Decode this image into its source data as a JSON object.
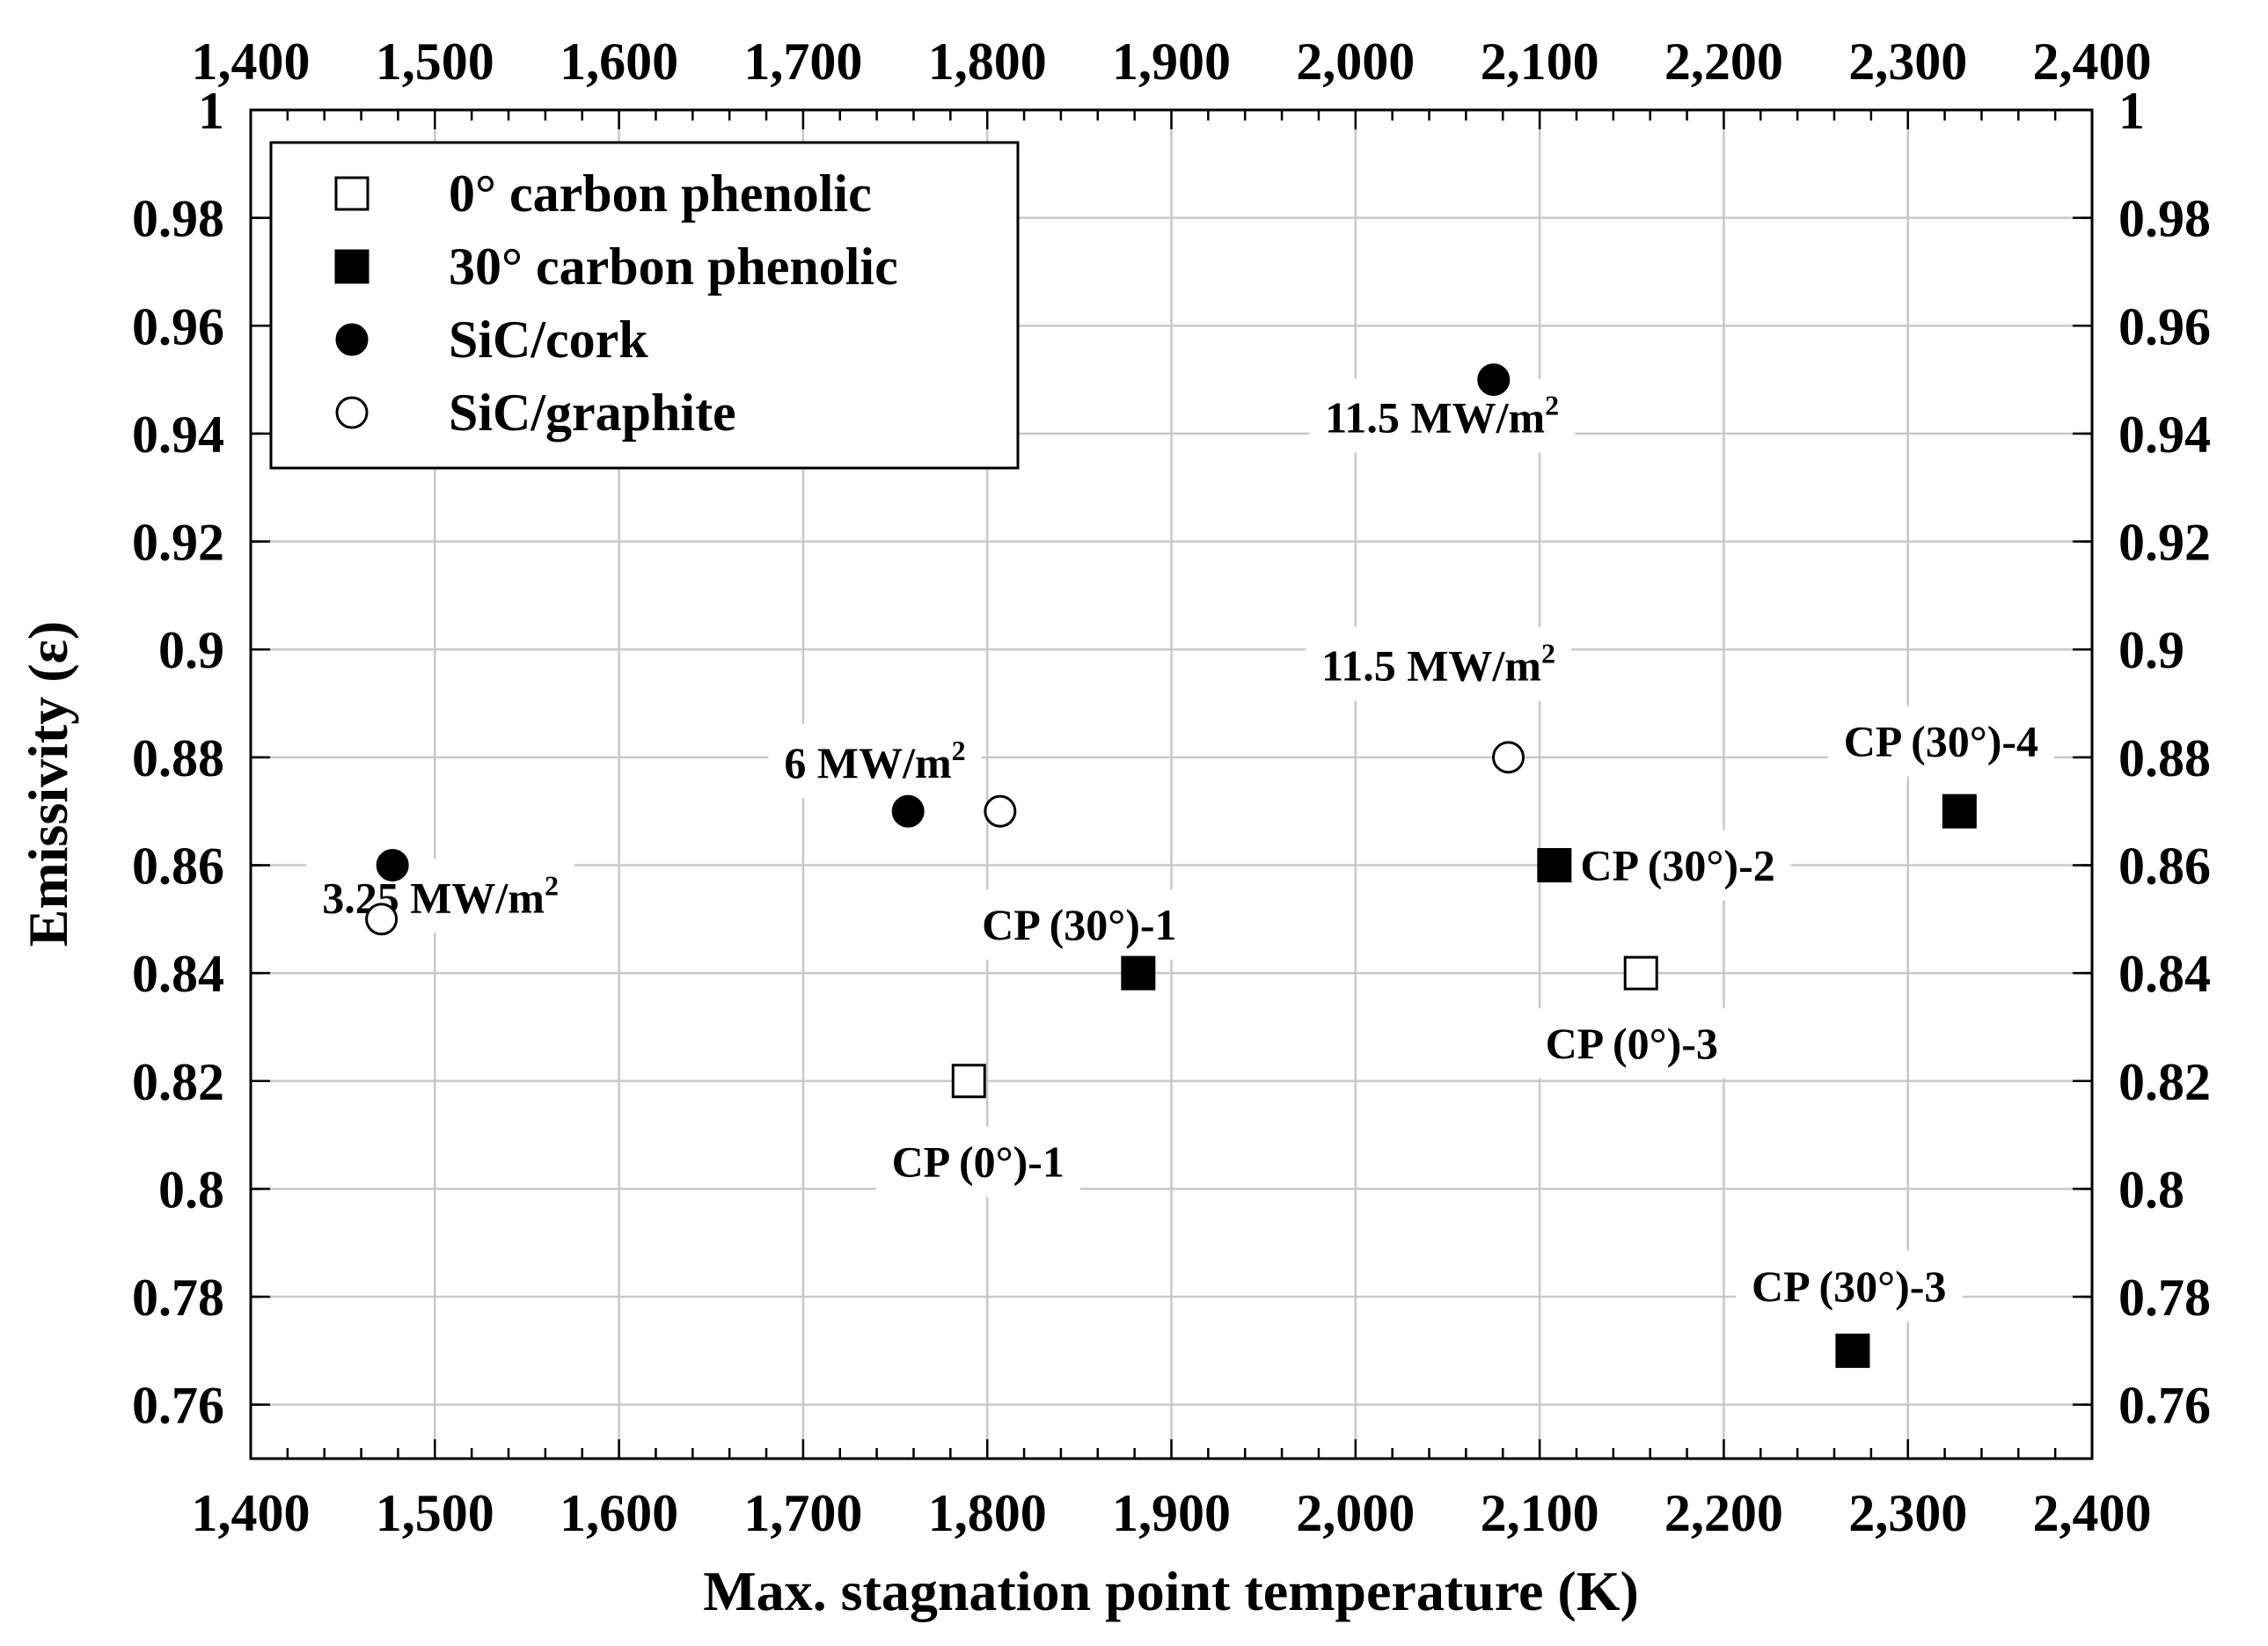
{
  "chart_data": {
    "type": "scatter",
    "xlabel": "Max. stagnation point temperature (K)",
    "ylabel": "Emissivity (ε)",
    "xlim": [
      1400,
      2400
    ],
    "ylim": [
      0.75,
      1.0
    ],
    "x_ticks": [
      1400,
      1500,
      1600,
      1700,
      1800,
      1900,
      2000,
      2100,
      2200,
      2300,
      2400
    ],
    "x_tick_labels": [
      "1,400",
      "1,500",
      "1,600",
      "1,700",
      "1,800",
      "1,900",
      "2,000",
      "2,100",
      "2,200",
      "2,300",
      "2,400"
    ],
    "y_ticks": [
      0.76,
      0.78,
      0.8,
      0.82,
      0.84,
      0.86,
      0.88,
      0.9,
      0.92,
      0.94,
      0.96,
      0.98,
      1.0
    ],
    "y_tick_labels": [
      "0.76",
      "0.78",
      "0.8",
      "0.82",
      "0.84",
      "0.86",
      "0.88",
      "0.9",
      "0.92",
      "0.94",
      "0.96",
      "0.98",
      "1"
    ],
    "grid": true,
    "legend_position": "top-left",
    "series": [
      {
        "name": "0° carbon phenolic",
        "marker": "square-open",
        "x": [
          1790,
          2155
        ],
        "y": [
          0.82,
          0.84
        ]
      },
      {
        "name": "30° carbon phenolic",
        "marker": "square-filled",
        "x": [
          1882,
          2108,
          2270,
          2328
        ],
        "y": [
          0.84,
          0.86,
          0.77,
          0.87
        ]
      },
      {
        "name": "SiC/cork",
        "marker": "circle-filled",
        "x": [
          1477,
          1757,
          2075
        ],
        "y": [
          0.86,
          0.87,
          0.95
        ]
      },
      {
        "name": "SiC/graphite",
        "marker": "circle-open",
        "x": [
          1471,
          1807,
          2083
        ],
        "y": [
          0.85,
          0.87,
          0.88
        ]
      }
    ],
    "annotations": [
      {
        "text": "3.25 MW/m",
        "sup": "2",
        "x": 1503,
        "y": 0.854
      },
      {
        "text": "6 MW/m",
        "sup": "2",
        "x": 1739,
        "y": 0.879
      },
      {
        "text": "11.5 MW/m",
        "sup": "2",
        "x": 2047,
        "y": 0.943
      },
      {
        "text": "11.5 MW/m",
        "sup": "2",
        "x": 2045,
        "y": 0.897
      },
      {
        "text": "CP (30°)-1",
        "sup": "",
        "x": 1850,
        "y": 0.849
      },
      {
        "text": "CP (0°)-1",
        "sup": "",
        "x": 1795,
        "y": 0.805
      },
      {
        "text": "CP (30°)-2",
        "sup": "",
        "x": 2175,
        "y": 0.86
      },
      {
        "text": "CP (0°)-3",
        "sup": "",
        "x": 2150,
        "y": 0.827
      },
      {
        "text": "CP (30°)-3",
        "sup": "",
        "x": 2268,
        "y": 0.782
      },
      {
        "text": "CP (30°)-4",
        "sup": "",
        "x": 2318,
        "y": 0.883
      }
    ]
  }
}
